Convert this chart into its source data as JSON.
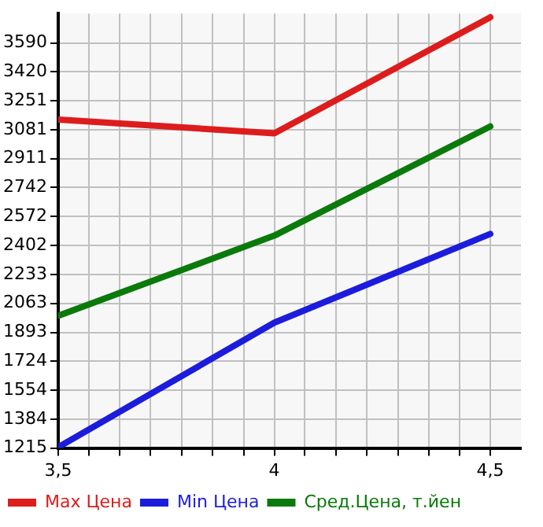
{
  "chart_data": {
    "type": "line",
    "x": [
      3.5,
      4,
      4.5
    ],
    "series": [
      {
        "name": "Max Цена",
        "color": "#dd1c1c",
        "values": [
          3140,
          3060,
          3740
        ]
      },
      {
        "name": "Min Цена",
        "color": "#1c1cdd",
        "values": [
          1220,
          1950,
          2470
        ]
      },
      {
        "name": "Сред.Цена, т.йен",
        "color": "#0a7a0a",
        "values": [
          1990,
          2460,
          3100
        ]
      }
    ],
    "xlim": [
      3.5,
      4.571
    ],
    "xticks": [
      {
        "value": 3.5,
        "label": "3,5"
      },
      {
        "value": 3.571,
        "label": null
      },
      {
        "value": 3.643,
        "label": null
      },
      {
        "value": 3.714,
        "label": null
      },
      {
        "value": 3.786,
        "label": null
      },
      {
        "value": 3.857,
        "label": null
      },
      {
        "value": 3.929,
        "label": null
      },
      {
        "value": 4,
        "label": "4"
      },
      {
        "value": 4.071,
        "label": null
      },
      {
        "value": 4.143,
        "label": null
      },
      {
        "value": 4.214,
        "label": null
      },
      {
        "value": 4.286,
        "label": null
      },
      {
        "value": 4.357,
        "label": null
      },
      {
        "value": 4.429,
        "label": null
      },
      {
        "value": 4.5,
        "label": "4,5"
      }
    ],
    "ylim": [
      1215,
      3762
    ],
    "yticks": [
      1215,
      1384,
      1554,
      1724,
      1893,
      2063,
      2233,
      2402,
      2572,
      2742,
      2911,
      3081,
      3251,
      3420,
      3590
    ],
    "grid": true,
    "legend": "bottom",
    "marker": "none",
    "line_style": "solid"
  }
}
